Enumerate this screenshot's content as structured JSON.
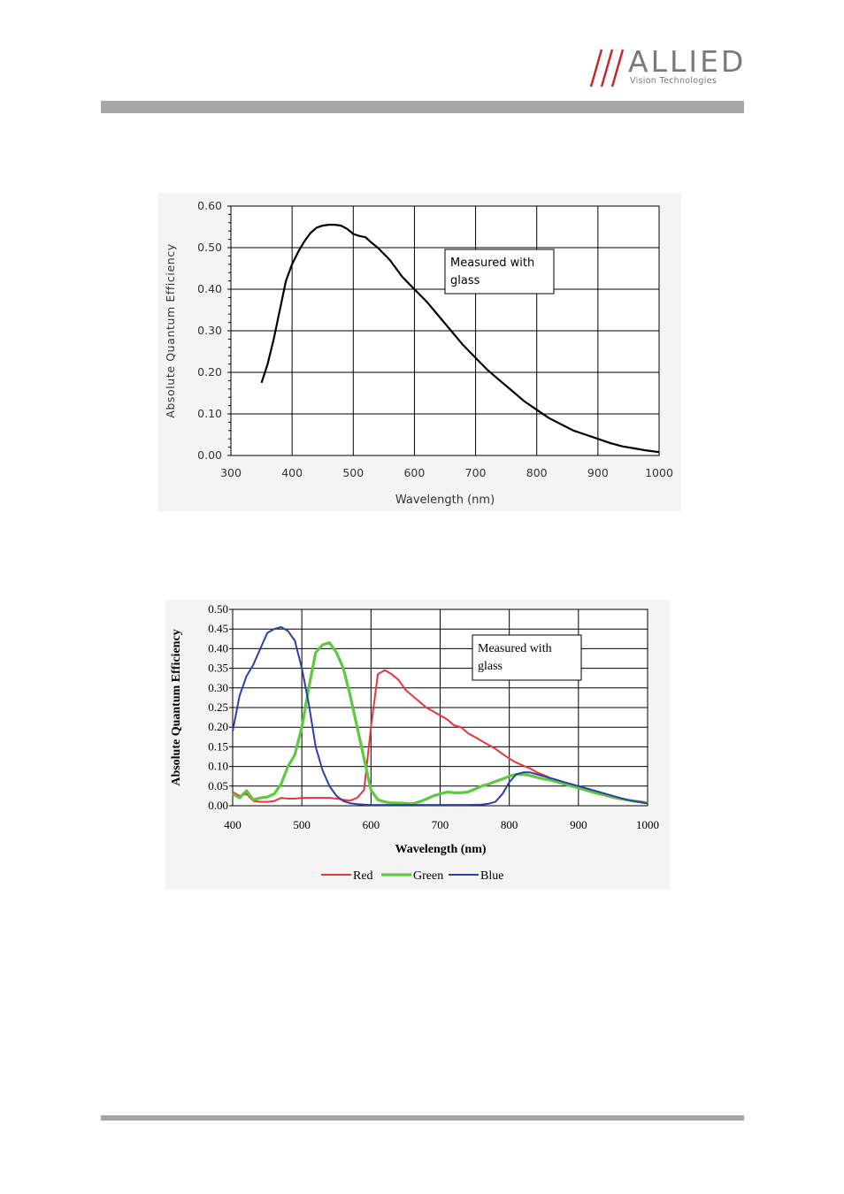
{
  "header": {
    "brand_name": "ALLIED",
    "brand_sub": "Vision Technologies",
    "logo_color": "#c8232c",
    "bar_color": "#a6a6a6"
  },
  "chart_data": [
    {
      "type": "line",
      "xlabel": "Wavelength (nm)",
      "ylabel": "Absolute Quantum Efficiency",
      "xlim": [
        300,
        1000
      ],
      "ylim": [
        0,
        0.6
      ],
      "xticks": [
        "300",
        "400",
        "500",
        "600",
        "700",
        "800",
        "900",
        "1000"
      ],
      "yticks": [
        "0.00",
        "0.10",
        "0.20",
        "0.30",
        "0.40",
        "0.50",
        "0.60"
      ],
      "grid": true,
      "annotation": "Measured with glass",
      "series": [
        {
          "color": "#000000",
          "x": [
            350,
            360,
            370,
            380,
            390,
            400,
            410,
            420,
            430,
            440,
            450,
            460,
            470,
            480,
            490,
            500,
            510,
            520,
            530,
            540,
            550,
            560,
            570,
            580,
            590,
            600,
            620,
            640,
            660,
            680,
            700,
            720,
            740,
            760,
            780,
            800,
            820,
            840,
            860,
            880,
            900,
            920,
            940,
            960,
            980,
            1000
          ],
          "y": [
            0.175,
            0.22,
            0.28,
            0.35,
            0.42,
            0.46,
            0.49,
            0.515,
            0.535,
            0.548,
            0.553,
            0.555,
            0.555,
            0.553,
            0.545,
            0.533,
            0.528,
            0.525,
            0.512,
            0.5,
            0.485,
            0.47,
            0.45,
            0.43,
            0.415,
            0.4,
            0.37,
            0.335,
            0.3,
            0.265,
            0.235,
            0.205,
            0.18,
            0.155,
            0.13,
            0.11,
            0.09,
            0.075,
            0.06,
            0.05,
            0.04,
            0.03,
            0.022,
            0.017,
            0.012,
            0.008
          ]
        }
      ]
    },
    {
      "type": "line",
      "xlabel": "Wavelength (nm)",
      "ylabel": "Absolute Quantum Efficiency",
      "xlim": [
        400,
        1000
      ],
      "ylim": [
        0,
        0.5
      ],
      "xticks": [
        "400",
        "500",
        "600",
        "700",
        "800",
        "900",
        "1000"
      ],
      "yticks": [
        "0.00",
        "0.05",
        "0.10",
        "0.15",
        "0.20",
        "0.25",
        "0.30",
        "0.35",
        "0.40",
        "0.45",
        "0.50"
      ],
      "grid": true,
      "annotation": "Measured with glass",
      "legend_position": "bottom",
      "series": [
        {
          "name": "Red",
          "color": "#e8363b",
          "x": [
            400,
            410,
            420,
            430,
            440,
            450,
            460,
            470,
            480,
            490,
            500,
            510,
            520,
            530,
            540,
            550,
            560,
            570,
            580,
            590,
            600,
            610,
            620,
            630,
            640,
            650,
            660,
            670,
            680,
            690,
            700,
            710,
            720,
            730,
            740,
            750,
            760,
            770,
            780,
            790,
            800,
            810,
            820,
            830,
            840,
            850,
            860,
            870,
            880,
            890,
            900,
            910,
            920,
            930,
            940,
            950,
            960,
            970,
            980,
            990,
            1000
          ],
          "y": [
            0.035,
            0.025,
            0.03,
            0.012,
            0.01,
            0.01,
            0.012,
            0.02,
            0.018,
            0.018,
            0.02,
            0.02,
            0.02,
            0.02,
            0.02,
            0.018,
            0.015,
            0.013,
            0.02,
            0.04,
            0.2,
            0.335,
            0.345,
            0.335,
            0.32,
            0.295,
            0.28,
            0.265,
            0.25,
            0.24,
            0.23,
            0.22,
            0.205,
            0.2,
            0.185,
            0.175,
            0.165,
            0.155,
            0.145,
            0.132,
            0.12,
            0.11,
            0.102,
            0.095,
            0.085,
            0.078,
            0.07,
            0.065,
            0.058,
            0.05,
            0.045,
            0.04,
            0.035,
            0.03,
            0.025,
            0.02,
            0.017,
            0.014,
            0.011,
            0.008,
            0.005
          ]
        },
        {
          "name": "Green",
          "color": "#5ec840",
          "x": [
            400,
            410,
            420,
            430,
            440,
            450,
            460,
            470,
            480,
            490,
            500,
            510,
            520,
            530,
            540,
            550,
            560,
            570,
            580,
            590,
            600,
            610,
            620,
            630,
            640,
            650,
            660,
            670,
            680,
            690,
            700,
            710,
            720,
            730,
            740,
            750,
            760,
            770,
            780,
            790,
            800,
            810,
            820,
            830,
            840,
            850,
            860,
            870,
            880,
            890,
            900,
            910,
            920,
            930,
            940,
            950,
            960,
            970,
            980,
            990,
            1000
          ],
          "y": [
            0.03,
            0.02,
            0.038,
            0.015,
            0.02,
            0.022,
            0.03,
            0.055,
            0.1,
            0.13,
            0.2,
            0.3,
            0.39,
            0.41,
            0.415,
            0.39,
            0.35,
            0.28,
            0.2,
            0.12,
            0.04,
            0.015,
            0.01,
            0.007,
            0.007,
            0.006,
            0.005,
            0.01,
            0.017,
            0.025,
            0.03,
            0.035,
            0.033,
            0.033,
            0.035,
            0.042,
            0.05,
            0.055,
            0.062,
            0.068,
            0.075,
            0.08,
            0.08,
            0.077,
            0.072,
            0.068,
            0.065,
            0.06,
            0.055,
            0.05,
            0.045,
            0.04,
            0.035,
            0.03,
            0.027,
            0.022,
            0.018,
            0.015,
            0.012,
            0.01,
            0.007
          ]
        },
        {
          "name": "Blue",
          "color": "#2d3fa6",
          "x": [
            400,
            410,
            420,
            430,
            440,
            450,
            460,
            470,
            480,
            490,
            500,
            510,
            520,
            530,
            540,
            550,
            560,
            570,
            580,
            590,
            600,
            610,
            620,
            640,
            660,
            680,
            700,
            720,
            740,
            760,
            770,
            780,
            790,
            800,
            810,
            820,
            830,
            840,
            850,
            860,
            870,
            880,
            890,
            900,
            910,
            920,
            930,
            940,
            950,
            960,
            970,
            980,
            990,
            1000
          ],
          "y": [
            0.19,
            0.28,
            0.33,
            0.36,
            0.4,
            0.44,
            0.45,
            0.455,
            0.445,
            0.42,
            0.35,
            0.26,
            0.15,
            0.09,
            0.05,
            0.025,
            0.012,
            0.006,
            0.004,
            0.003,
            0.002,
            0.002,
            0.002,
            0.002,
            0.002,
            0.002,
            0.002,
            0.002,
            0.002,
            0.003,
            0.005,
            0.01,
            0.03,
            0.06,
            0.08,
            0.085,
            0.085,
            0.08,
            0.075,
            0.07,
            0.065,
            0.06,
            0.055,
            0.05,
            0.045,
            0.04,
            0.035,
            0.03,
            0.025,
            0.02,
            0.015,
            0.012,
            0.009,
            0.006
          ]
        }
      ]
    }
  ]
}
